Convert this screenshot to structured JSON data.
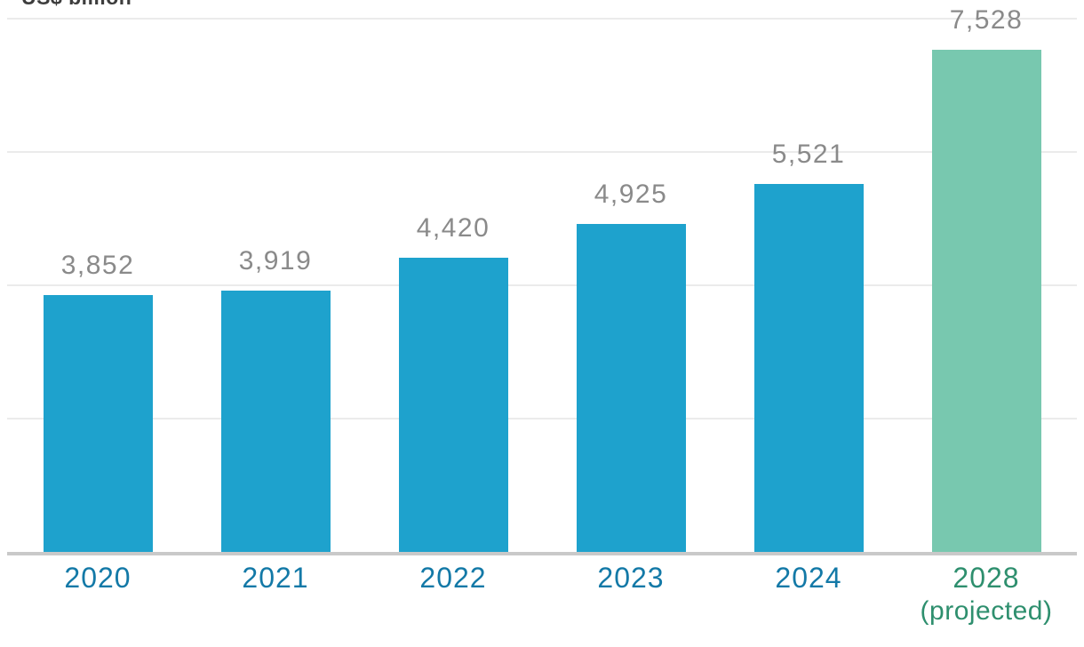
{
  "chart_data": {
    "type": "bar",
    "title": "US$ billion",
    "ylabel": "US$ billion",
    "xlabel": "",
    "categories": [
      "2020",
      "2021",
      "2022",
      "2023",
      "2024",
      "2028"
    ],
    "category_sublabels": [
      "",
      "",
      "",
      "",
      "",
      "(projected)"
    ],
    "values": [
      3852,
      3919,
      4420,
      4925,
      5521,
      7528
    ],
    "value_labels": [
      "3,852",
      "3,919",
      "4,420",
      "4,925",
      "5,521",
      "7,528"
    ],
    "ylim": [
      0,
      8000
    ],
    "gridline_values": [
      2000,
      4000,
      6000,
      8000
    ],
    "grid": "horizontal",
    "legend": "none",
    "projected_index": 5
  },
  "colors": {
    "bar": "#1ea2cd",
    "bar_projected": "#78c8af",
    "value_label": "#8a8a8a",
    "year_label": "#1379a7",
    "year_label_projected": "#2e8f6e",
    "gridline": "#ebebeb",
    "axis_line": "#c9c9c9",
    "axis_title": "#3d3d3d",
    "background": "#ffffff"
  }
}
